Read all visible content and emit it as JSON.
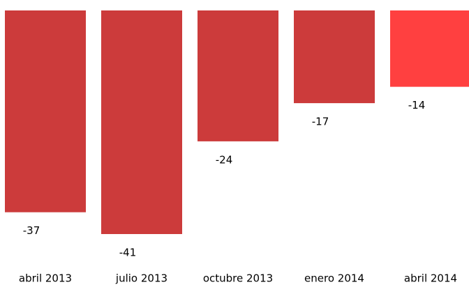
{
  "chart_data": {
    "type": "bar",
    "categories": [
      "abril 2013",
      "julio 2013",
      "octubre 2013",
      "enero 2014",
      "abril 2014"
    ],
    "values": [
      -37,
      -41,
      -24,
      -17,
      -14
    ],
    "colors": [
      "#cc3b3b",
      "#cc3b3b",
      "#cc3b3b",
      "#cc3b3b",
      "#ff4040"
    ],
    "ylim": [
      -41,
      0
    ]
  }
}
